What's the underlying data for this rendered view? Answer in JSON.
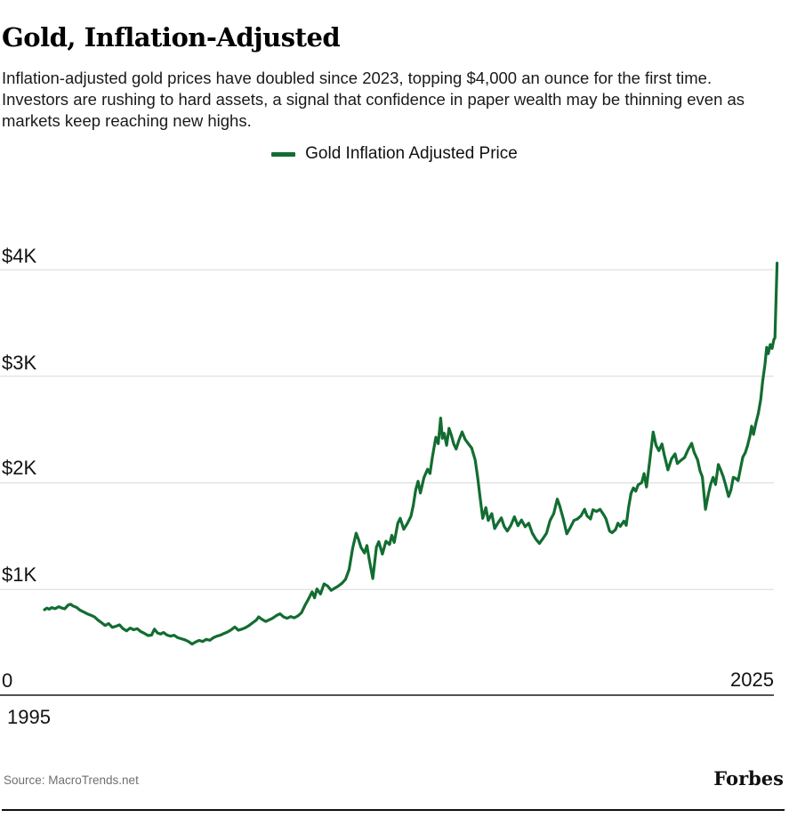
{
  "header": {
    "title": "Gold, Inflation-Adjusted",
    "description": "Inflation-adjusted gold prices have doubled since 2023, topping $4,000 an ounce for the first time. Investors are rushing to hard assets, a signal that confidence in paper wealth may be thinning even as markets keep reaching new highs."
  },
  "legend": {
    "label": "Gold Inflation Adjusted Price"
  },
  "footer": {
    "source": "Source: MacroTrends.net",
    "brand": "Forbes"
  },
  "colors": {
    "line": "#126d31",
    "grid": "#d9d9d9",
    "axis": "#1a1a1a",
    "text": "#111111",
    "muted": "#6f6f6f"
  },
  "chart_data": {
    "type": "line",
    "title": "Gold, Inflation-Adjusted",
    "xlabel": "",
    "ylabel": "",
    "grid": "horizontal",
    "legend_position": "top-center",
    "x_range": [
      1995,
      2025.9
    ],
    "y_range": [
      0,
      4300
    ],
    "y_gridlines": [
      {
        "value": 1000,
        "label": "$1K"
      },
      {
        "value": 2000,
        "label": "$2K"
      },
      {
        "value": 3000,
        "label": "$3K"
      },
      {
        "value": 4000,
        "label": "$4K"
      }
    ],
    "x_axis": {
      "left_label": "1995",
      "right_label": "2025",
      "zero_label": "0"
    },
    "series": [
      {
        "name": "Gold Inflation Adjusted Price",
        "color": "#126d31",
        "points": [
          [
            1995.0,
            810
          ],
          [
            1995.1,
            825
          ],
          [
            1995.2,
            815
          ],
          [
            1995.3,
            830
          ],
          [
            1995.45,
            820
          ],
          [
            1995.6,
            838
          ],
          [
            1995.7,
            828
          ],
          [
            1995.85,
            818
          ],
          [
            1996.0,
            855
          ],
          [
            1996.1,
            862
          ],
          [
            1996.2,
            845
          ],
          [
            1996.35,
            832
          ],
          [
            1996.5,
            805
          ],
          [
            1996.65,
            788
          ],
          [
            1996.8,
            772
          ],
          [
            1996.95,
            758
          ],
          [
            1997.1,
            742
          ],
          [
            1997.25,
            712
          ],
          [
            1997.4,
            688
          ],
          [
            1997.55,
            662
          ],
          [
            1997.7,
            680
          ],
          [
            1997.85,
            645
          ],
          [
            1998.0,
            655
          ],
          [
            1998.15,
            668
          ],
          [
            1998.3,
            632
          ],
          [
            1998.45,
            612
          ],
          [
            1998.6,
            638
          ],
          [
            1998.75,
            622
          ],
          [
            1998.9,
            632
          ],
          [
            1999.05,
            605
          ],
          [
            1999.2,
            588
          ],
          [
            1999.35,
            568
          ],
          [
            1999.5,
            572
          ],
          [
            1999.62,
            628
          ],
          [
            1999.75,
            592
          ],
          [
            1999.88,
            582
          ],
          [
            2000.0,
            596
          ],
          [
            2000.15,
            572
          ],
          [
            2000.3,
            562
          ],
          [
            2000.45,
            570
          ],
          [
            2000.6,
            548
          ],
          [
            2000.75,
            538
          ],
          [
            2000.9,
            528
          ],
          [
            2001.05,
            512
          ],
          [
            2001.2,
            488
          ],
          [
            2001.35,
            508
          ],
          [
            2001.5,
            522
          ],
          [
            2001.65,
            512
          ],
          [
            2001.8,
            532
          ],
          [
            2001.95,
            524
          ],
          [
            2002.1,
            548
          ],
          [
            2002.25,
            562
          ],
          [
            2002.4,
            572
          ],
          [
            2002.55,
            588
          ],
          [
            2002.7,
            602
          ],
          [
            2002.85,
            622
          ],
          [
            2003.0,
            648
          ],
          [
            2003.15,
            618
          ],
          [
            2003.3,
            628
          ],
          [
            2003.45,
            642
          ],
          [
            2003.6,
            662
          ],
          [
            2003.75,
            688
          ],
          [
            2003.9,
            712
          ],
          [
            2004.0,
            742
          ],
          [
            2004.15,
            718
          ],
          [
            2004.3,
            700
          ],
          [
            2004.45,
            716
          ],
          [
            2004.6,
            732
          ],
          [
            2004.75,
            756
          ],
          [
            2004.9,
            772
          ],
          [
            2005.05,
            742
          ],
          [
            2005.2,
            730
          ],
          [
            2005.35,
            746
          ],
          [
            2005.5,
            734
          ],
          [
            2005.65,
            752
          ],
          [
            2005.8,
            782
          ],
          [
            2005.95,
            852
          ],
          [
            2006.1,
            912
          ],
          [
            2006.25,
            978
          ],
          [
            2006.35,
            922
          ],
          [
            2006.45,
            1005
          ],
          [
            2006.6,
            958
          ],
          [
            2006.75,
            1052
          ],
          [
            2006.9,
            1032
          ],
          [
            2007.05,
            992
          ],
          [
            2007.2,
            1012
          ],
          [
            2007.35,
            1032
          ],
          [
            2007.5,
            1058
          ],
          [
            2007.65,
            1095
          ],
          [
            2007.8,
            1185
          ],
          [
            2007.95,
            1385
          ],
          [
            2008.1,
            1528
          ],
          [
            2008.2,
            1468
          ],
          [
            2008.3,
            1395
          ],
          [
            2008.45,
            1342
          ],
          [
            2008.55,
            1412
          ],
          [
            2008.65,
            1282
          ],
          [
            2008.8,
            1102
          ],
          [
            2008.95,
            1398
          ],
          [
            2009.05,
            1448
          ],
          [
            2009.2,
            1332
          ],
          [
            2009.35,
            1452
          ],
          [
            2009.5,
            1422
          ],
          [
            2009.6,
            1508
          ],
          [
            2009.7,
            1442
          ],
          [
            2009.85,
            1622
          ],
          [
            2009.95,
            1668
          ],
          [
            2010.1,
            1565
          ],
          [
            2010.25,
            1618
          ],
          [
            2010.4,
            1688
          ],
          [
            2010.5,
            1788
          ],
          [
            2010.6,
            1932
          ],
          [
            2010.7,
            2015
          ],
          [
            2010.8,
            1905
          ],
          [
            2010.95,
            2052
          ],
          [
            2011.1,
            2128
          ],
          [
            2011.2,
            2088
          ],
          [
            2011.3,
            2238
          ],
          [
            2011.45,
            2428
          ],
          [
            2011.55,
            2368
          ],
          [
            2011.65,
            2608
          ],
          [
            2011.72,
            2418
          ],
          [
            2011.8,
            2465
          ],
          [
            2011.9,
            2352
          ],
          [
            2012.0,
            2512
          ],
          [
            2012.1,
            2448
          ],
          [
            2012.2,
            2365
          ],
          [
            2012.3,
            2318
          ],
          [
            2012.42,
            2402
          ],
          [
            2012.55,
            2478
          ],
          [
            2012.68,
            2408
          ],
          [
            2012.8,
            2372
          ],
          [
            2012.95,
            2328
          ],
          [
            2013.1,
            2215
          ],
          [
            2013.2,
            2058
          ],
          [
            2013.3,
            1878
          ],
          [
            2013.42,
            1668
          ],
          [
            2013.55,
            1768
          ],
          [
            2013.65,
            1648
          ],
          [
            2013.8,
            1712
          ],
          [
            2013.92,
            1572
          ],
          [
            2014.05,
            1622
          ],
          [
            2014.2,
            1672
          ],
          [
            2014.32,
            1592
          ],
          [
            2014.45,
            1548
          ],
          [
            2014.6,
            1602
          ],
          [
            2014.75,
            1682
          ],
          [
            2014.9,
            1598
          ],
          [
            2015.05,
            1652
          ],
          [
            2015.2,
            1588
          ],
          [
            2015.35,
            1622
          ],
          [
            2015.5,
            1528
          ],
          [
            2015.65,
            1472
          ],
          [
            2015.8,
            1432
          ],
          [
            2015.95,
            1478
          ],
          [
            2016.1,
            1528
          ],
          [
            2016.25,
            1648
          ],
          [
            2016.4,
            1712
          ],
          [
            2016.55,
            1848
          ],
          [
            2016.65,
            1788
          ],
          [
            2016.8,
            1668
          ],
          [
            2016.95,
            1522
          ],
          [
            2017.1,
            1582
          ],
          [
            2017.25,
            1648
          ],
          [
            2017.4,
            1662
          ],
          [
            2017.55,
            1692
          ],
          [
            2017.7,
            1752
          ],
          [
            2017.8,
            1692
          ],
          [
            2017.95,
            1662
          ],
          [
            2018.05,
            1748
          ],
          [
            2018.2,
            1732
          ],
          [
            2018.35,
            1752
          ],
          [
            2018.5,
            1702
          ],
          [
            2018.6,
            1662
          ],
          [
            2018.75,
            1548
          ],
          [
            2018.85,
            1532
          ],
          [
            2019.0,
            1562
          ],
          [
            2019.1,
            1622
          ],
          [
            2019.2,
            1592
          ],
          [
            2019.35,
            1642
          ],
          [
            2019.45,
            1602
          ],
          [
            2019.55,
            1772
          ],
          [
            2019.65,
            1902
          ],
          [
            2019.75,
            1952
          ],
          [
            2019.85,
            1922
          ],
          [
            2019.95,
            1982
          ],
          [
            2020.1,
            2002
          ],
          [
            2020.2,
            2088
          ],
          [
            2020.3,
            1962
          ],
          [
            2020.45,
            2232
          ],
          [
            2020.58,
            2478
          ],
          [
            2020.7,
            2352
          ],
          [
            2020.82,
            2302
          ],
          [
            2020.95,
            2365
          ],
          [
            2021.05,
            2262
          ],
          [
            2021.2,
            2122
          ],
          [
            2021.35,
            2225
          ],
          [
            2021.5,
            2272
          ],
          [
            2021.6,
            2182
          ],
          [
            2021.75,
            2212
          ],
          [
            2021.9,
            2238
          ],
          [
            2022.05,
            2312
          ],
          [
            2022.2,
            2372
          ],
          [
            2022.3,
            2288
          ],
          [
            2022.45,
            2215
          ],
          [
            2022.55,
            2112
          ],
          [
            2022.65,
            2055
          ],
          [
            2022.78,
            1752
          ],
          [
            2022.9,
            1892
          ],
          [
            2023.0,
            1988
          ],
          [
            2023.1,
            2052
          ],
          [
            2023.2,
            1985
          ],
          [
            2023.32,
            2172
          ],
          [
            2023.42,
            2122
          ],
          [
            2023.52,
            2062
          ],
          [
            2023.62,
            1985
          ],
          [
            2023.75,
            1872
          ],
          [
            2023.85,
            1932
          ],
          [
            2023.95,
            2052
          ],
          [
            2024.05,
            2042
          ],
          [
            2024.15,
            2022
          ],
          [
            2024.25,
            2132
          ],
          [
            2024.35,
            2242
          ],
          [
            2024.45,
            2282
          ],
          [
            2024.55,
            2352
          ],
          [
            2024.65,
            2442
          ],
          [
            2024.72,
            2532
          ],
          [
            2024.8,
            2455
          ],
          [
            2024.9,
            2562
          ],
          [
            2025.0,
            2652
          ],
          [
            2025.1,
            2782
          ],
          [
            2025.18,
            2948
          ],
          [
            2025.28,
            3112
          ],
          [
            2025.35,
            3272
          ],
          [
            2025.42,
            3212
          ],
          [
            2025.5,
            3298
          ],
          [
            2025.58,
            3262
          ],
          [
            2025.65,
            3342
          ],
          [
            2025.7,
            3362
          ],
          [
            2025.74,
            3682
          ],
          [
            2025.79,
            4062
          ]
        ]
      }
    ]
  }
}
